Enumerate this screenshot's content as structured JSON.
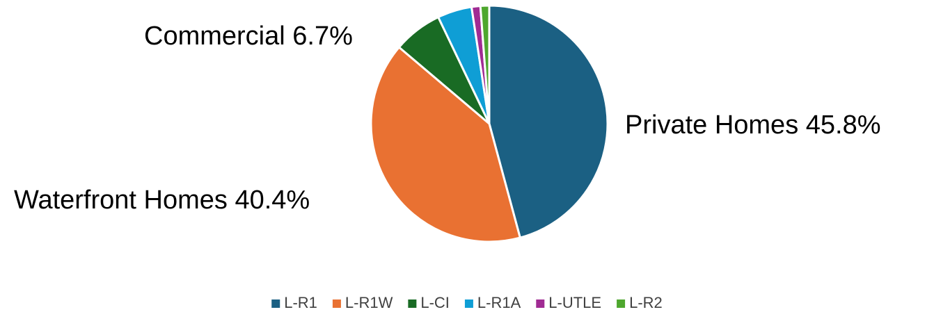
{
  "chart_data": {
    "type": "pie",
    "categories": [
      "L-R1",
      "L-R1W",
      "L-CI",
      "L-R1A",
      "L-UTLE",
      "L-R2"
    ],
    "values": [
      45.8,
      40.4,
      6.7,
      4.7,
      1.2,
      1.2
    ],
    "value_labels": [
      "Private Homes 45.8%",
      "Waterfront Homes 40.4%",
      "Commercial 6.7%",
      null,
      null,
      null
    ],
    "colors": [
      "#1b6083",
      "#e97132",
      "#196b24",
      "#0f9ed5",
      "#a02b93",
      "#4ea72e"
    ],
    "legend": "bottom"
  }
}
